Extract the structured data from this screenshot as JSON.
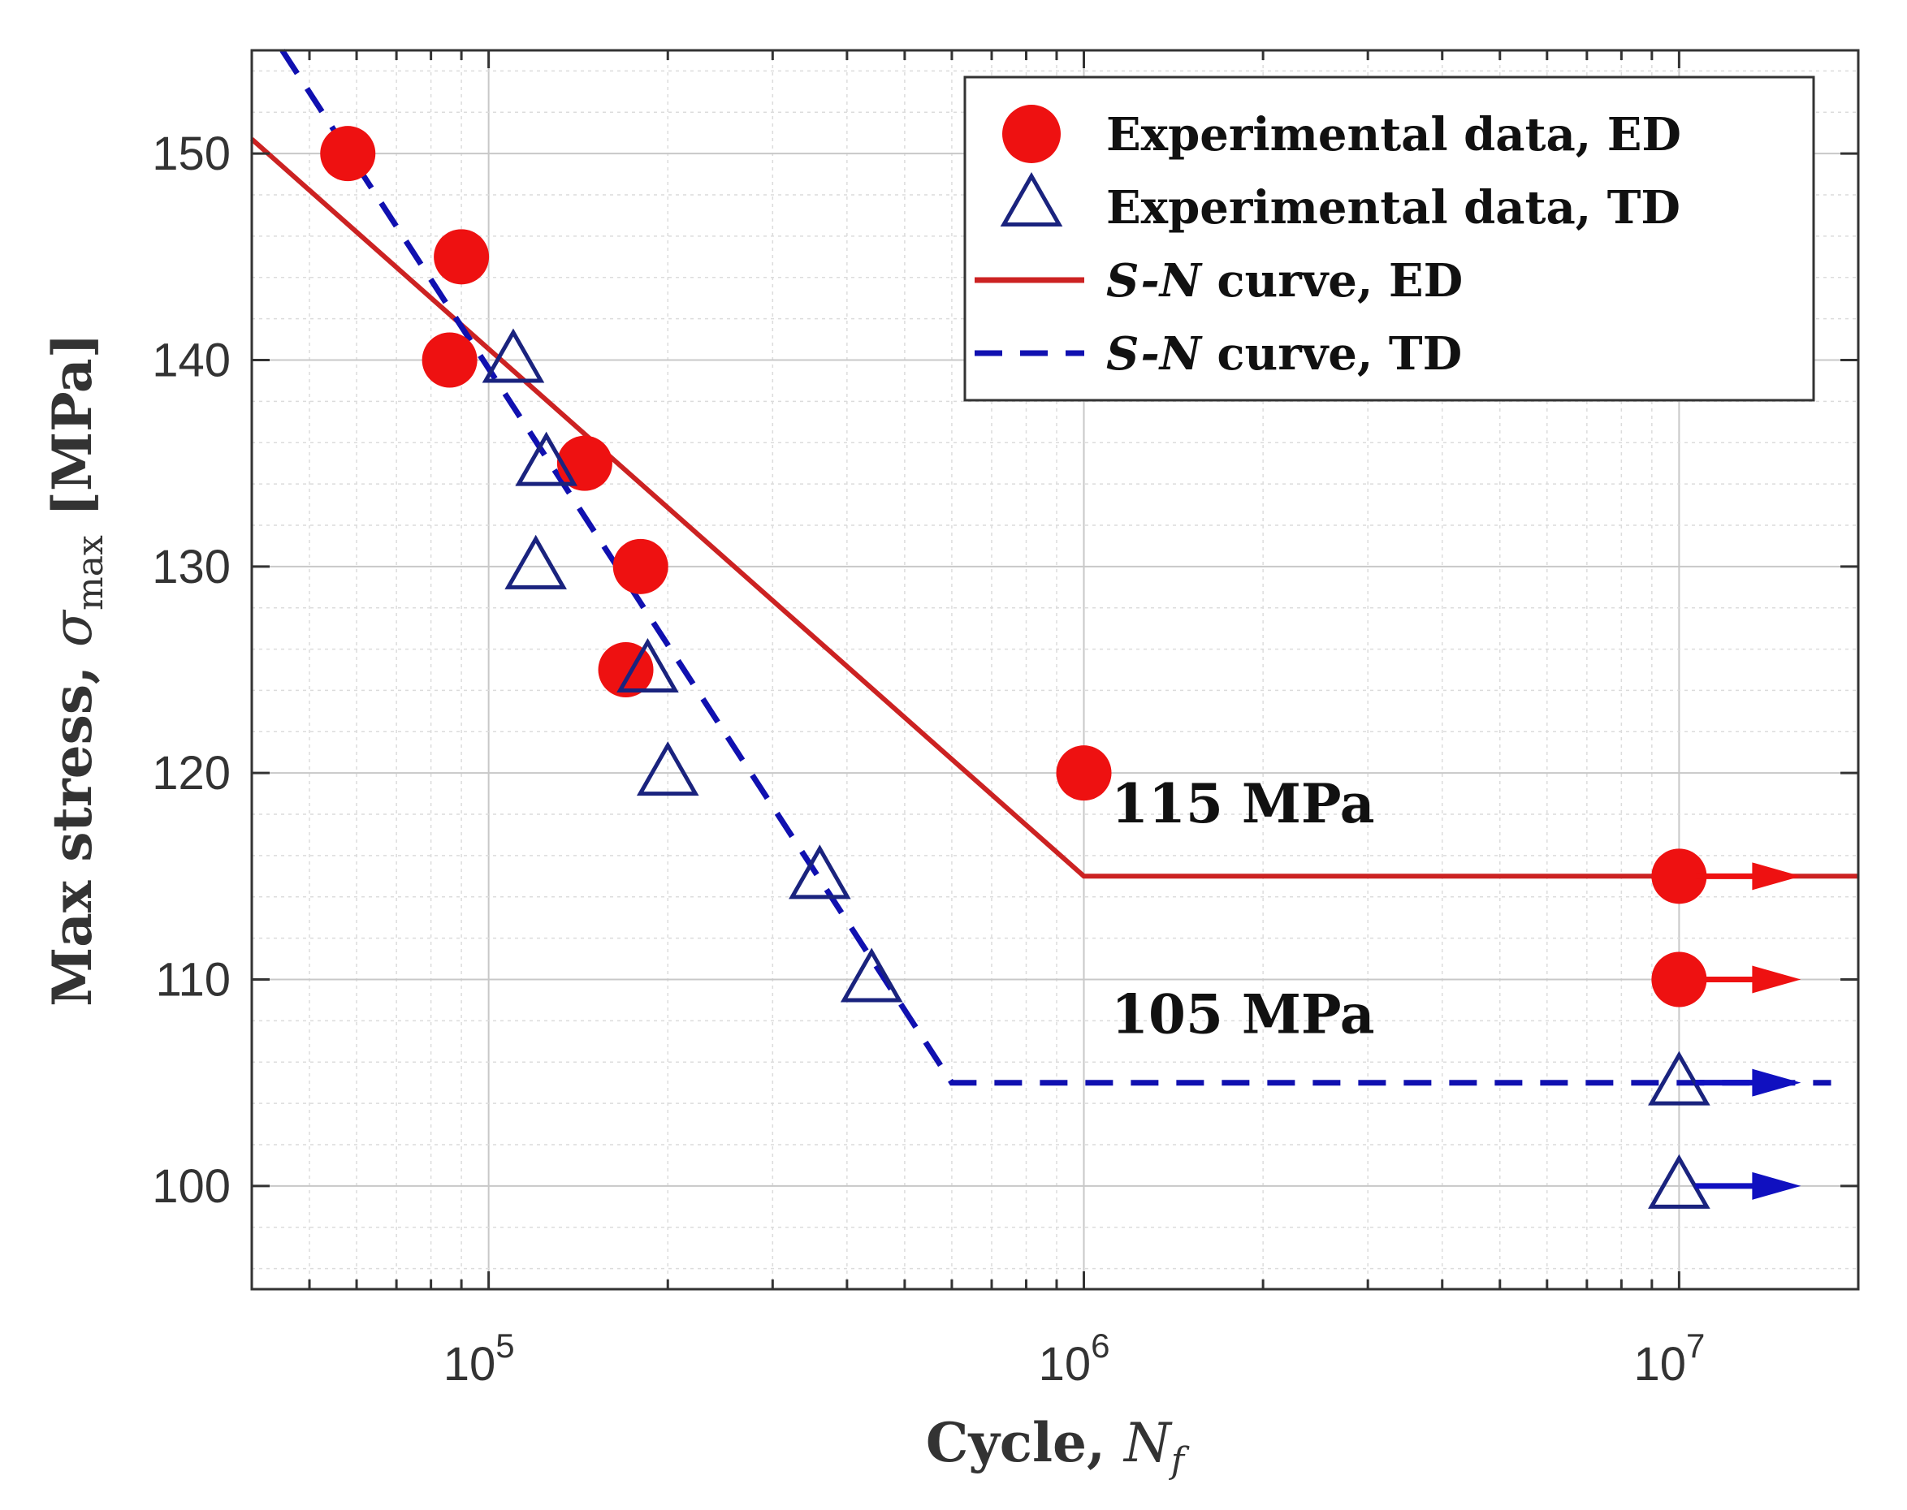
{
  "chart_data": {
    "type": "scatter",
    "xscale": "log",
    "xlim": [
      40000,
      20000000
    ],
    "ylim": [
      95,
      155
    ],
    "grid": true,
    "xlabel": {
      "main": "Cycle, ",
      "symbol": "N",
      "sub": "f"
    },
    "ylabel": {
      "main": "Max stress, ",
      "symbol": "σ",
      "sub": "max",
      "unit": " [MPa]"
    },
    "xticks": [
      {
        "value": 100000,
        "base": "10",
        "exp": "5"
      },
      {
        "value": 1000000,
        "base": "10",
        "exp": "6"
      },
      {
        "value": 10000000,
        "base": "10",
        "exp": "7"
      }
    ],
    "yticks": [
      {
        "value": 100,
        "label": "100"
      },
      {
        "value": 110,
        "label": "110"
      },
      {
        "value": 120,
        "label": "120"
      },
      {
        "value": 130,
        "label": "130"
      },
      {
        "value": 140,
        "label": "140"
      },
      {
        "value": 150,
        "label": "150"
      }
    ],
    "series": [
      {
        "name": "Experimental data, ED",
        "kind": "marker-circle",
        "color": "#ee1111",
        "points": [
          [
            58000,
            150
          ],
          [
            90000,
            145
          ],
          [
            86000,
            140
          ],
          [
            145000,
            135
          ],
          [
            180000,
            130
          ],
          [
            170000,
            125
          ],
          [
            1000000,
            120
          ],
          [
            10000000,
            115
          ],
          [
            10000000,
            110
          ]
        ]
      },
      {
        "name": "Experimental data, TD",
        "kind": "marker-triangle",
        "color": "#1a237e",
        "points": [
          [
            110000,
            140
          ],
          [
            125000,
            135
          ],
          [
            120000,
            130
          ],
          [
            185000,
            125
          ],
          [
            200000,
            120
          ],
          [
            360000,
            115
          ],
          [
            440000,
            110
          ],
          [
            10000000,
            105
          ],
          [
            10000000,
            100
          ]
        ]
      },
      {
        "name": "S-N curve, ED",
        "legend_prefix": "S-N",
        "legend_suffix": " curve, ED",
        "kind": "line-solid",
        "color": "#cc2222",
        "points": [
          [
            40000,
            150.7
          ],
          [
            1000000,
            115
          ],
          [
            20000000,
            115
          ]
        ]
      },
      {
        "name": "S-N curve, TD",
        "legend_prefix": "S-N",
        "legend_suffix": " curve, TD",
        "kind": "line-dashed",
        "color": "#1010b0",
        "points": [
          [
            45000,
            155
          ],
          [
            600000,
            105
          ],
          [
            18000000,
            105
          ]
        ]
      }
    ],
    "runout_arrows": [
      {
        "x": 10000000,
        "y": 115,
        "series": "ED",
        "color": "#ee1111"
      },
      {
        "x": 10000000,
        "y": 110,
        "series": "ED",
        "color": "#ee1111"
      },
      {
        "x": 10000000,
        "y": 105,
        "series": "TD",
        "color": "#1010c0"
      },
      {
        "x": 10000000,
        "y": 100,
        "series": "TD",
        "color": "#1010c0"
      }
    ],
    "annotations": [
      {
        "text": "115 MPa",
        "x": 1850000,
        "y": 117.6
      },
      {
        "text": "105 MPa",
        "x": 1850000,
        "y": 107.4
      }
    ],
    "legend_position": "top-right"
  }
}
